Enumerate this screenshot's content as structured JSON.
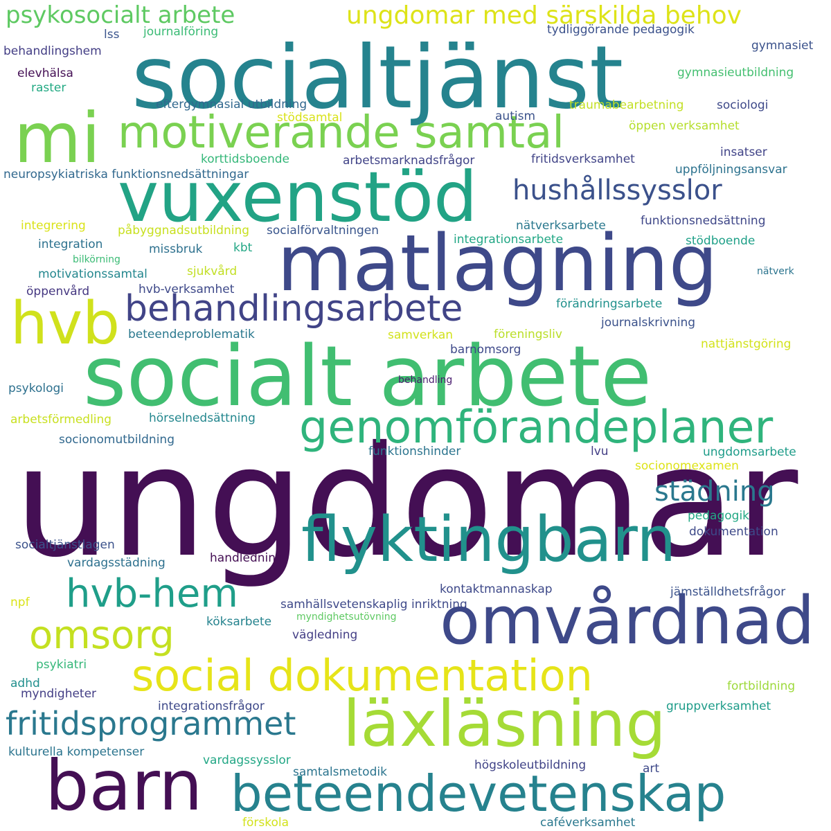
{
  "words": [
    {
      "text": "ungdomar",
      "color": "#440f54"
    },
    {
      "text": "socialtjänst",
      "color": "#25838e"
    },
    {
      "text": "socialt arbete",
      "color": "#41be71"
    },
    {
      "text": "matlagning",
      "color": "#3e4989"
    },
    {
      "text": "vuxenstöd",
      "color": "#22a385"
    },
    {
      "text": "barn",
      "color": "#440f54"
    },
    {
      "text": "mi",
      "color": "#7ad151"
    },
    {
      "text": "omvårdnad",
      "color": "#3e4989"
    },
    {
      "text": "läxläsning",
      "color": "#a5db36"
    },
    {
      "text": "flyktingbarn",
      "color": "#21918c"
    },
    {
      "text": "hvb",
      "color": "#d0e11c"
    },
    {
      "text": "beteendevetenskap",
      "color": "#26828e"
    },
    {
      "text": "genomförandeplaner",
      "color": "#2fb47c"
    },
    {
      "text": "motiverande samtal",
      "color": "#7ad151"
    },
    {
      "text": "social dokumentation",
      "color": "#e6e419"
    },
    {
      "text": "behandlingsarbete",
      "color": "#414487"
    },
    {
      "text": "hvb-hem",
      "color": "#1f9e89"
    },
    {
      "text": "omsorg",
      "color": "#c4e021"
    },
    {
      "text": "fritidsprogrammet",
      "color": "#2a788e"
    },
    {
      "text": "hushållssysslor",
      "color": "#3b518b"
    },
    {
      "text": "städning",
      "color": "#2a788e"
    },
    {
      "text": "ungdomar med särskilda behov",
      "color": "#dde318"
    },
    {
      "text": "psykosocialt arbete",
      "color": "#5ec962"
    },
    {
      "text": "lss",
      "color": "#3a548c"
    },
    {
      "text": "journalföring",
      "color": "#3bbb75"
    },
    {
      "text": "tydliggörande pedagogik",
      "color": "#3b518b"
    },
    {
      "text": "gymnasiet",
      "color": "#3b528b"
    },
    {
      "text": "behandlingshem",
      "color": "#433e85"
    },
    {
      "text": "elevhälsa",
      "color": "#440f54"
    },
    {
      "text": "gymnasieutbildning",
      "color": "#44bf70"
    },
    {
      "text": "raster",
      "color": "#23a983"
    },
    {
      "text": "eftergymnasial utbildning",
      "color": "#31688e"
    },
    {
      "text": "traumabearbetning",
      "color": "#c2df23"
    },
    {
      "text": "sociologi",
      "color": "#3e4989"
    },
    {
      "text": "autism",
      "color": "#3b528b"
    },
    {
      "text": "stödsamtal",
      "color": "#d8e219"
    },
    {
      "text": "öppen verksamhet",
      "color": "#b5de2b"
    },
    {
      "text": "insatser",
      "color": "#404387"
    },
    {
      "text": "korttidsboende",
      "color": "#35b779"
    },
    {
      "text": "arbetsmarknadsfrågor",
      "color": "#404387"
    },
    {
      "text": "fritidsverksamhet",
      "color": "#414487"
    },
    {
      "text": "neuropsykiatriska funktionsnedsättningar",
      "color": "#31688e"
    },
    {
      "text": "uppföljningsansvar",
      "color": "#2c728e"
    },
    {
      "text": "integrering",
      "color": "#dae319"
    },
    {
      "text": "påbyggnadsutbildning",
      "color": "#c8e020"
    },
    {
      "text": "socialförvaltningen",
      "color": "#39558c"
    },
    {
      "text": "nätverksarbete",
      "color": "#2a788e"
    },
    {
      "text": "funktionsnedsättning",
      "color": "#3f4788"
    },
    {
      "text": "integration",
      "color": "#2c718e"
    },
    {
      "text": "missbruk",
      "color": "#2d708e"
    },
    {
      "text": "kbt",
      "color": "#22a785"
    },
    {
      "text": "integrationsarbete",
      "color": "#22a785"
    },
    {
      "text": "stödboende",
      "color": "#1fa088"
    },
    {
      "text": "bilkörning",
      "color": "#3bbb75"
    },
    {
      "text": "motivationssamtal",
      "color": "#24878e"
    },
    {
      "text": "sjukvård",
      "color": "#c2df23"
    },
    {
      "text": "nätverk",
      "color": "#2b748e"
    },
    {
      "text": "hvb-verksamhet",
      "color": "#3e4989"
    },
    {
      "text": "öppenvård",
      "color": "#453781"
    },
    {
      "text": "förändringsarbete",
      "color": "#21918c"
    },
    {
      "text": "journalskrivning",
      "color": "#3b528b"
    },
    {
      "text": "beteendeproblematik",
      "color": "#2a788e"
    },
    {
      "text": "samverkan",
      "color": "#d2e21b"
    },
    {
      "text": "föreningsliv",
      "color": "#bade28"
    },
    {
      "text": "nattjänstgöring",
      "color": "#d2e21b"
    },
    {
      "text": "barnomsorg",
      "color": "#3e4989"
    },
    {
      "text": "behandling",
      "color": "#481c6e"
    },
    {
      "text": "psykologi",
      "color": "#2d708e"
    },
    {
      "text": "arbetsförmedling",
      "color": "#c8e020"
    },
    {
      "text": "hörselnedsättning",
      "color": "#24878e"
    },
    {
      "text": "socionomutbildning",
      "color": "#31688e"
    },
    {
      "text": "funktionshinder",
      "color": "#2b748e"
    },
    {
      "text": "lvu",
      "color": "#433e85"
    },
    {
      "text": "ungdomsarbete",
      "color": "#1e9c89"
    },
    {
      "text": "socionomexamen",
      "color": "#dde318"
    },
    {
      "text": "pedagogik",
      "color": "#22a884"
    },
    {
      "text": "dokumentation",
      "color": "#3e4989"
    },
    {
      "text": "socialtjänstlagen",
      "color": "#3b528b"
    },
    {
      "text": "vardagsstädning",
      "color": "#2d708e"
    },
    {
      "text": "handledning",
      "color": "#440f54"
    },
    {
      "text": "kontaktmannaskap",
      "color": "#3e4989"
    },
    {
      "text": "npf",
      "color": "#dae319"
    },
    {
      "text": "samhällsvetenskaplig inriktning",
      "color": "#3e4989"
    },
    {
      "text": "jämställdhetsfrågor",
      "color": "#3b528b"
    },
    {
      "text": "köksarbete",
      "color": "#25838e"
    },
    {
      "text": "myndighetsutövning",
      "color": "#5ec962"
    },
    {
      "text": "vägledning",
      "color": "#433e85"
    },
    {
      "text": "psykiatri",
      "color": "#35b779"
    },
    {
      "text": "adhd",
      "color": "#218f8d"
    },
    {
      "text": "myndigheter",
      "color": "#433e85"
    },
    {
      "text": "fortbildning",
      "color": "#9dd93b"
    },
    {
      "text": "integrationsfrågor",
      "color": "#3e4989"
    },
    {
      "text": "gruppverksamhet",
      "color": "#1e9c89"
    },
    {
      "text": "kulturella kompetenser",
      "color": "#2b748e"
    },
    {
      "text": "vardagssysslor",
      "color": "#22a785"
    },
    {
      "text": "högskoleutbildning",
      "color": "#404387"
    },
    {
      "text": "samtalsmetodik",
      "color": "#2b748e"
    },
    {
      "text": "art",
      "color": "#3e4989"
    },
    {
      "text": "förskola",
      "color": "#d2e21b"
    },
    {
      "text": "caféverksamhet",
      "color": "#2a788e"
    }
  ]
}
